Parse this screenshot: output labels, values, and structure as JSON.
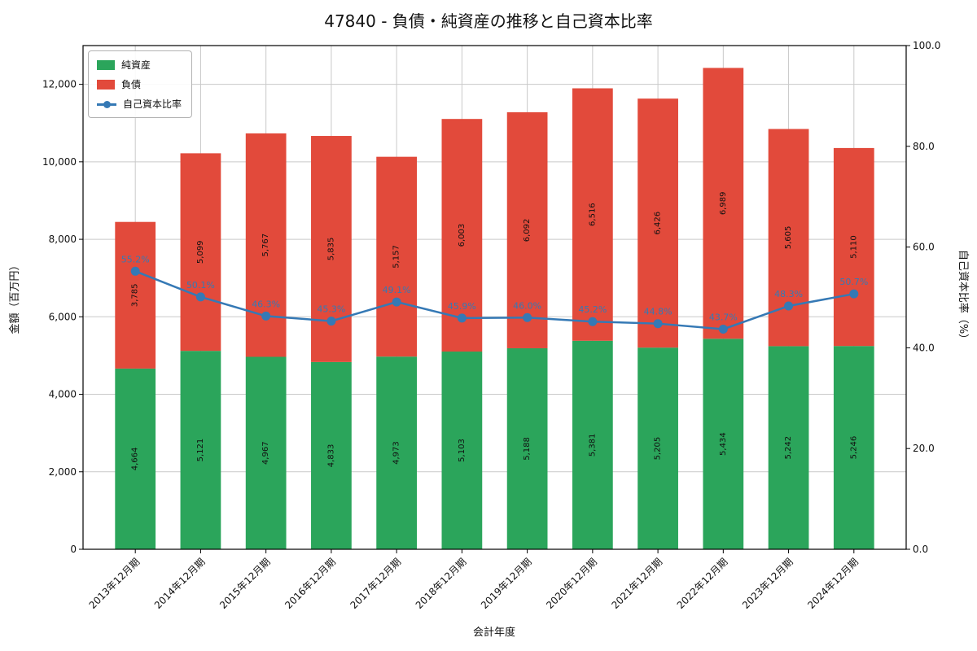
{
  "chart_data": {
    "type": "bar",
    "subtype": "stacked-bar-with-line",
    "title": "47840 - 負債・純資産の推移と自己資本比率",
    "xlabel": "会計年度",
    "ylabel_left": "金額（百万円）",
    "ylabel_right": "自己資本比率（%）",
    "categories": [
      "2013年12月期",
      "2014年12月期",
      "2015年12月期",
      "2016年12月期",
      "2017年12月期",
      "2018年12月期",
      "2019年12月期",
      "2020年12月期",
      "2021年12月期",
      "2022年12月期",
      "2023年12月期",
      "2024年12月期"
    ],
    "series": [
      {
        "name": "純資産",
        "type": "bar",
        "stack": true,
        "axis": "left",
        "color": "#2ba55b",
        "values": [
          4664,
          5121,
          4967,
          4833,
          4973,
          5103,
          5188,
          5381,
          5205,
          5434,
          5242,
          5246
        ]
      },
      {
        "name": "負債",
        "type": "bar",
        "stack": true,
        "axis": "left",
        "color": "#e24a3b",
        "values": [
          3785,
          5099,
          5767,
          5835,
          5157,
          6003,
          6092,
          6516,
          6426,
          6989,
          5605,
          5110
        ]
      },
      {
        "name": "自己資本比率",
        "type": "line",
        "axis": "right",
        "color": "#3579b5",
        "values": [
          55.2,
          50.1,
          46.3,
          45.3,
          49.1,
          45.9,
          46.0,
          45.2,
          44.8,
          43.7,
          48.3,
          50.7
        ]
      }
    ],
    "ylim_left": [
      0,
      13000
    ],
    "ylim_right": [
      0,
      100
    ],
    "yticks_left": [
      0,
      2000,
      4000,
      6000,
      8000,
      10000,
      12000
    ],
    "yticks_right": [
      0,
      20,
      40,
      60,
      80,
      100
    ],
    "grid": true,
    "grid_color": "#c9c9c9",
    "legend_position": "upper-left",
    "text_color": "#111111"
  }
}
